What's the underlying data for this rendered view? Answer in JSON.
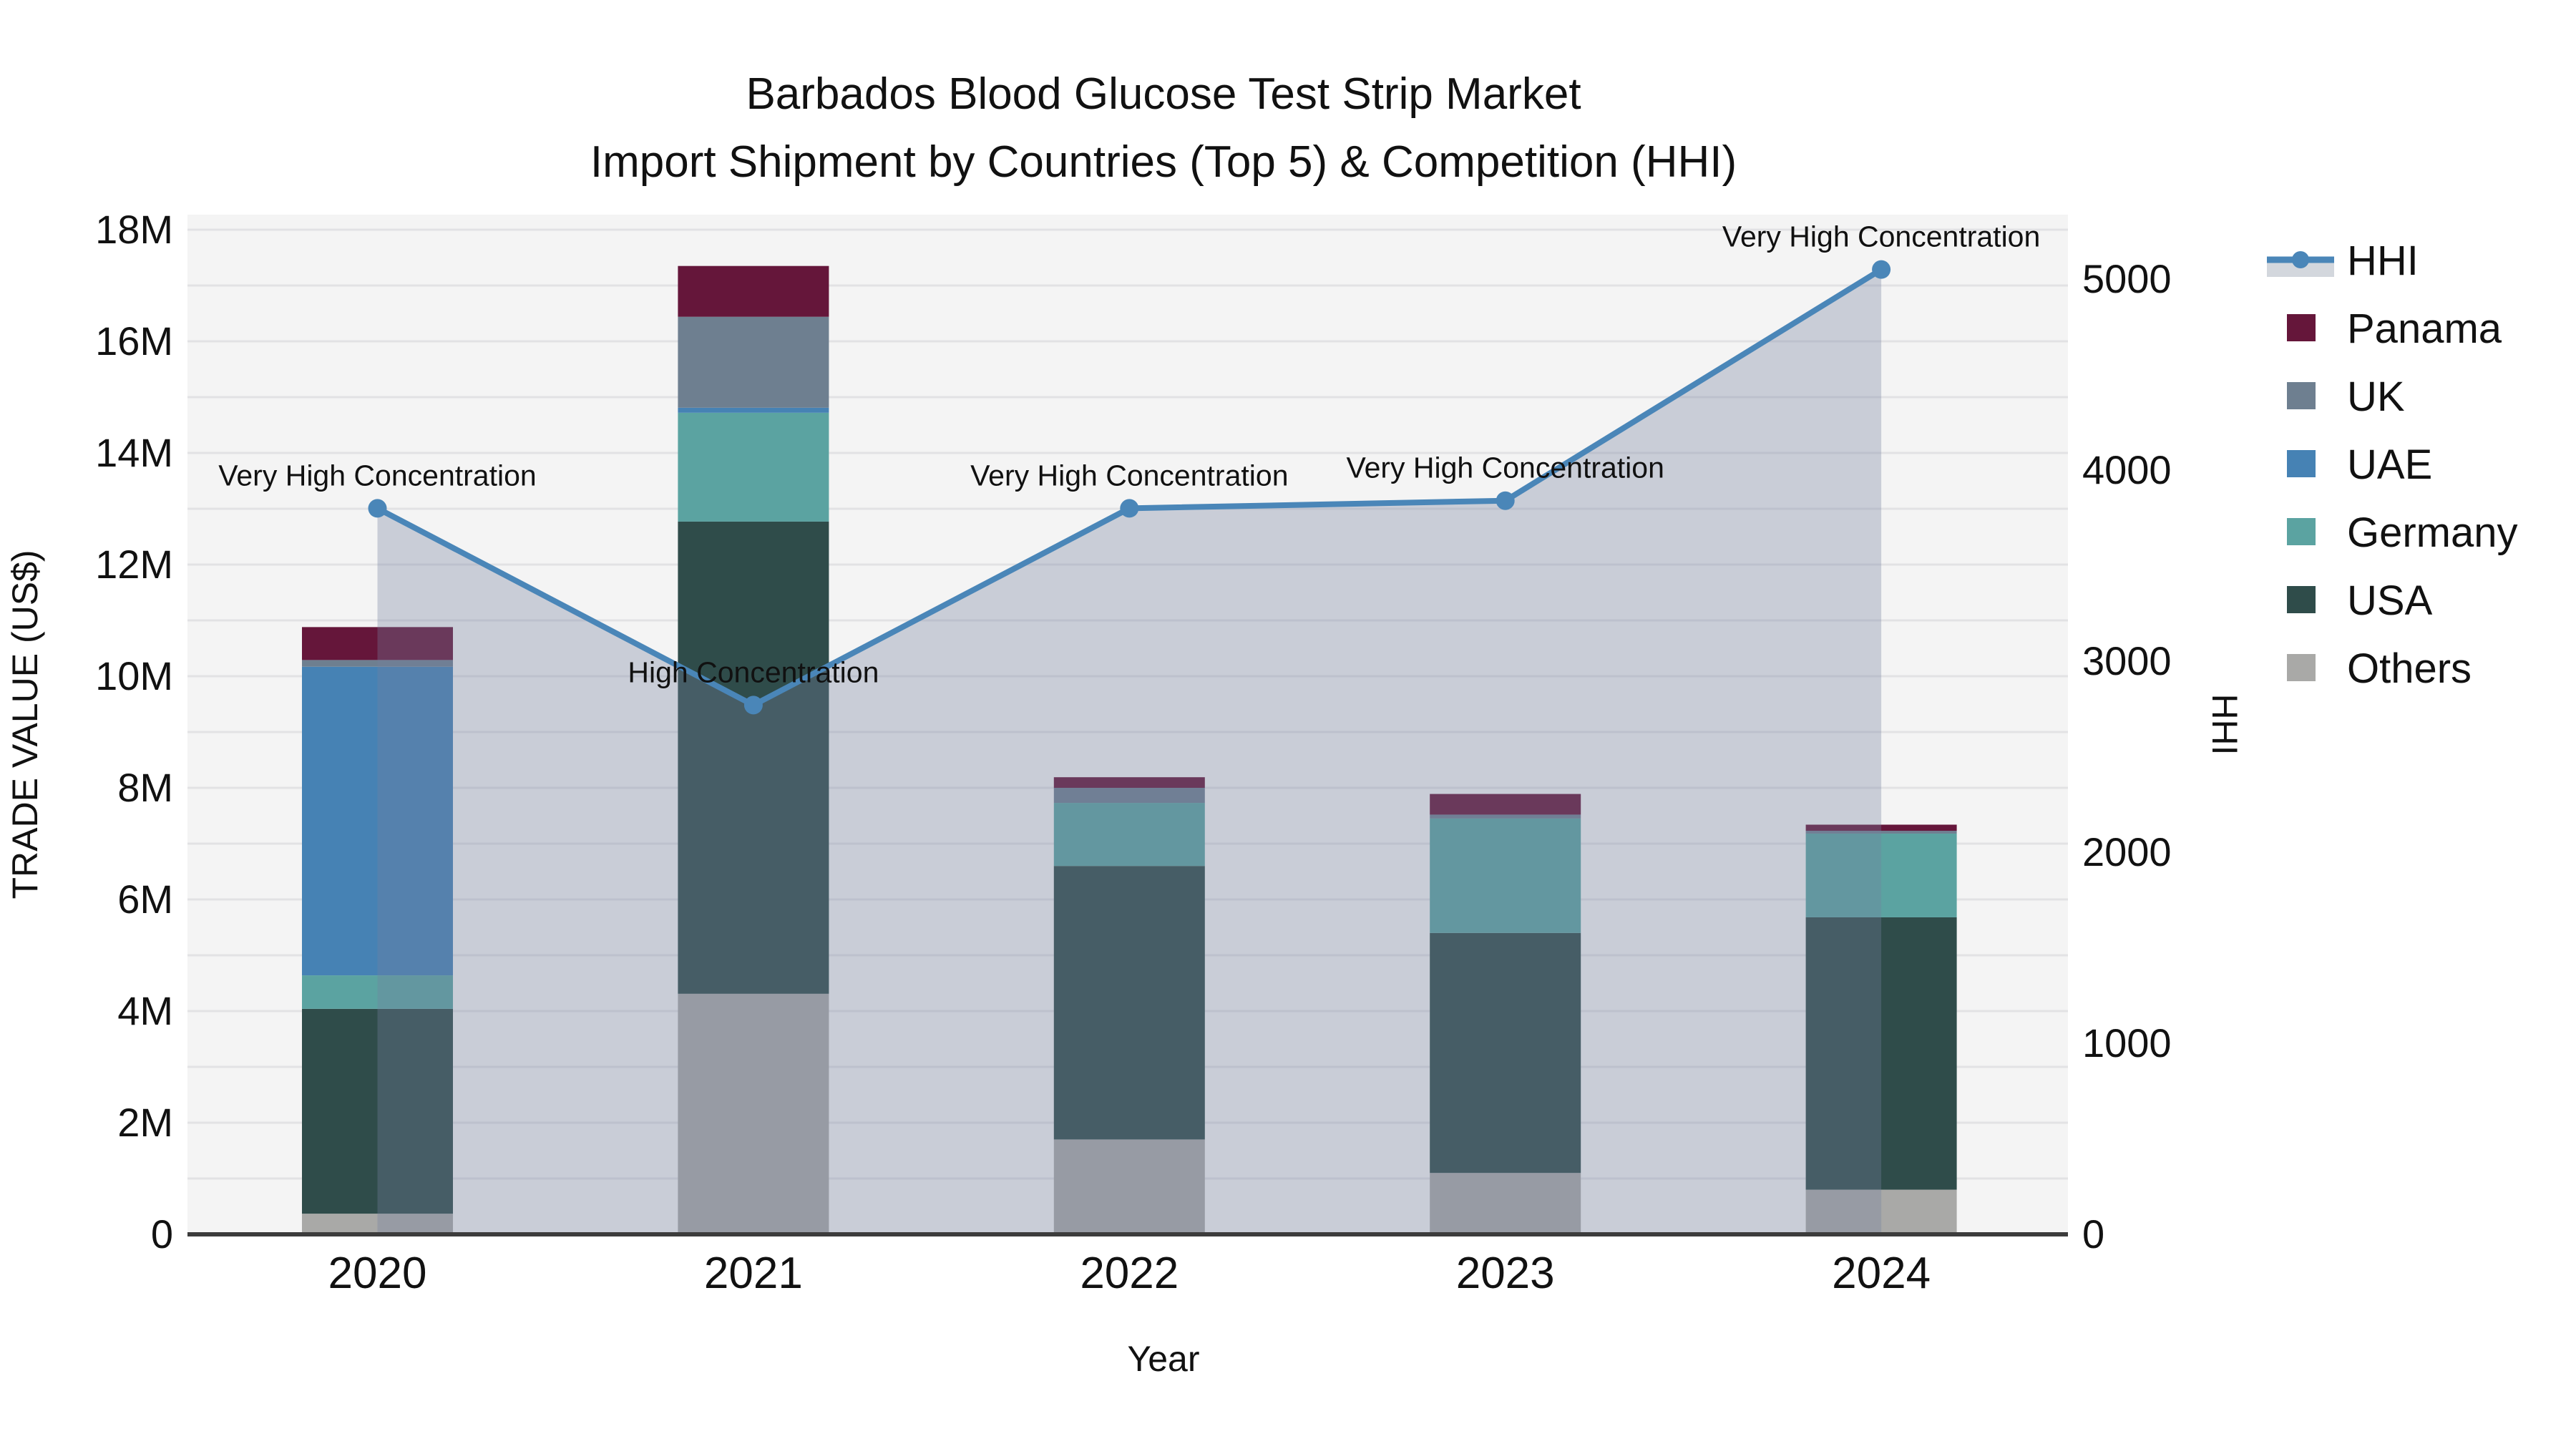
{
  "title": {
    "line1": "Barbados Blood Glucose Test Strip Market",
    "line2": "Import Shipment by Countries (Top 5) & Competition (HHI)"
  },
  "axes": {
    "left": {
      "title": "TRADE VALUE (US$)",
      "tick_labels": [
        "0",
        "2M",
        "4M",
        "6M",
        "8M",
        "10M",
        "12M",
        "14M",
        "16M",
        "18M"
      ],
      "tick_values": [
        0,
        2,
        4,
        6,
        8,
        10,
        12,
        14,
        16,
        18
      ],
      "range_millions": [
        0,
        18.27
      ]
    },
    "right": {
      "title": "HHI",
      "tick_labels": [
        "0",
        "1000",
        "2000",
        "3000",
        "4000",
        "5000"
      ],
      "tick_values": [
        0,
        1000,
        2000,
        3000,
        4000,
        5000
      ],
      "range": [
        0,
        5337
      ]
    },
    "x": {
      "title": "Year",
      "tick_labels": [
        "2020",
        "2021",
        "2022",
        "2023",
        "2024"
      ]
    }
  },
  "legend": {
    "items": [
      {
        "label": "HHI",
        "type": "line-area",
        "color": "#4a86b8",
        "band_color": "#d3d7dd"
      },
      {
        "label": "Panama",
        "type": "swatch",
        "color": "#65163a"
      },
      {
        "label": "UK",
        "type": "swatch",
        "color": "#6e7f90"
      },
      {
        "label": "UAE",
        "type": "swatch",
        "color": "#4682b4"
      },
      {
        "label": "Germany",
        "type": "swatch",
        "color": "#5ba3a1"
      },
      {
        "label": "USA",
        "type": "swatch",
        "color": "#2f4c4a"
      },
      {
        "label": "Others",
        "type": "swatch",
        "color": "#a9a9a7"
      }
    ]
  },
  "annotations": [
    {
      "year": "2020",
      "text": "Very High Concentration"
    },
    {
      "year": "2021",
      "text": "High Concentration"
    },
    {
      "year": "2022",
      "text": "Very High Concentration"
    },
    {
      "year": "2023",
      "text": "Very High Concentration"
    },
    {
      "year": "2024",
      "text": "Very High Concentration"
    }
  ],
  "chart_data": {
    "type": "bar",
    "subtype": "stacked-bars-with-line",
    "title": "Barbados Blood Glucose Test Strip Market — Import Shipment by Countries (Top 5) & Competition (HHI)",
    "xlabel": "Year",
    "ylabel_left": "TRADE VALUE (US$)",
    "ylabel_right": "HHI",
    "categories": [
      "2020",
      "2021",
      "2022",
      "2023",
      "2024"
    ],
    "bar_unit": "millions USD",
    "stack_order_bottom_to_top": [
      "Others",
      "USA",
      "Germany",
      "UAE",
      "UK",
      "Panama"
    ],
    "series": [
      {
        "name": "Others",
        "color": "#a9a9a7",
        "values": [
          0.37,
          4.31,
          1.7,
          1.1,
          0.8
        ]
      },
      {
        "name": "USA",
        "color": "#2f4c4a",
        "values": [
          3.67,
          8.46,
          4.9,
          4.3,
          4.88
        ]
      },
      {
        "name": "Germany",
        "color": "#5ba3a1",
        "values": [
          0.6,
          1.95,
          1.13,
          2.05,
          1.5
        ]
      },
      {
        "name": "UAE",
        "color": "#4682b4",
        "values": [
          5.53,
          0.09,
          0.0,
          0.0,
          0.0
        ]
      },
      {
        "name": "UK",
        "color": "#6e7f90",
        "values": [
          0.12,
          1.63,
          0.27,
          0.07,
          0.05
        ]
      },
      {
        "name": "Panama",
        "color": "#65163a",
        "values": [
          0.59,
          0.91,
          0.19,
          0.37,
          0.11
        ]
      }
    ],
    "bar_totals_millions": [
      10.88,
      17.35,
      8.19,
      7.89,
      7.34
    ],
    "line_series": {
      "name": "HHI",
      "color": "#4a86b8",
      "area_fill": "rgba(116,130,160,0.335)",
      "values": [
        3800,
        2770,
        3800,
        3840,
        5050
      ]
    },
    "ylim_left_millions": [
      0,
      18.27
    ],
    "ylim_right": [
      0,
      5337
    ],
    "grid": "horizontal, every 1M, light gray",
    "legend_position": "right"
  },
  "style": {
    "plot_bg": "#f4f4f4",
    "grid_color": "#e2e2e4",
    "axis_line_color": "#3c3c3c",
    "text_color": "#111111"
  }
}
